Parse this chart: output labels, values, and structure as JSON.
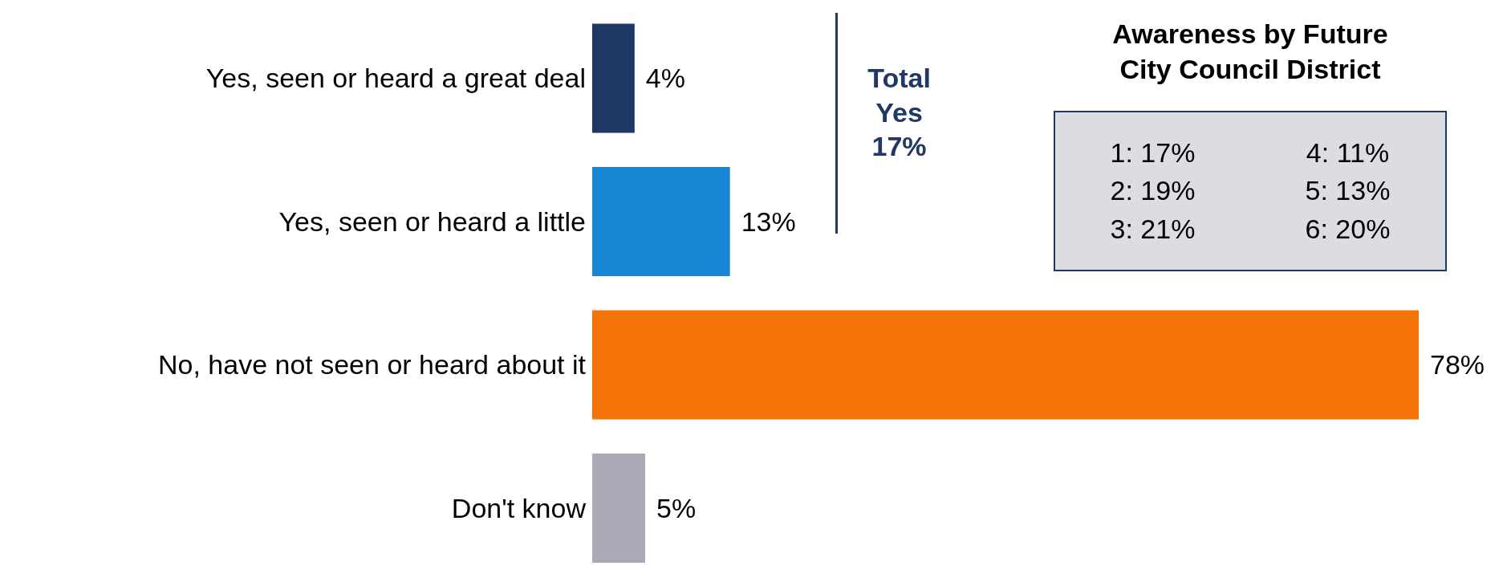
{
  "chart_data": {
    "type": "bar",
    "orientation": "horizontal",
    "categories": [
      "Yes, seen or heard a great deal",
      "Yes, seen or heard a little",
      "No, have not seen or heard about it",
      "Don't know"
    ],
    "values": [
      4,
      13,
      78,
      5
    ],
    "value_labels": [
      "4%",
      "13%",
      "78%",
      "5%"
    ],
    "colors": [
      "#1f3864",
      "#1a87d6",
      "#f57206",
      "#a9aab5"
    ],
    "annotations": [
      "Total Yes 17%",
      "Awareness by Future City Council District",
      "1: 17%",
      "4: 11%",
      "2: 19%",
      "5: 13%",
      "3: 21%",
      "6: 20%"
    ]
  }
}
